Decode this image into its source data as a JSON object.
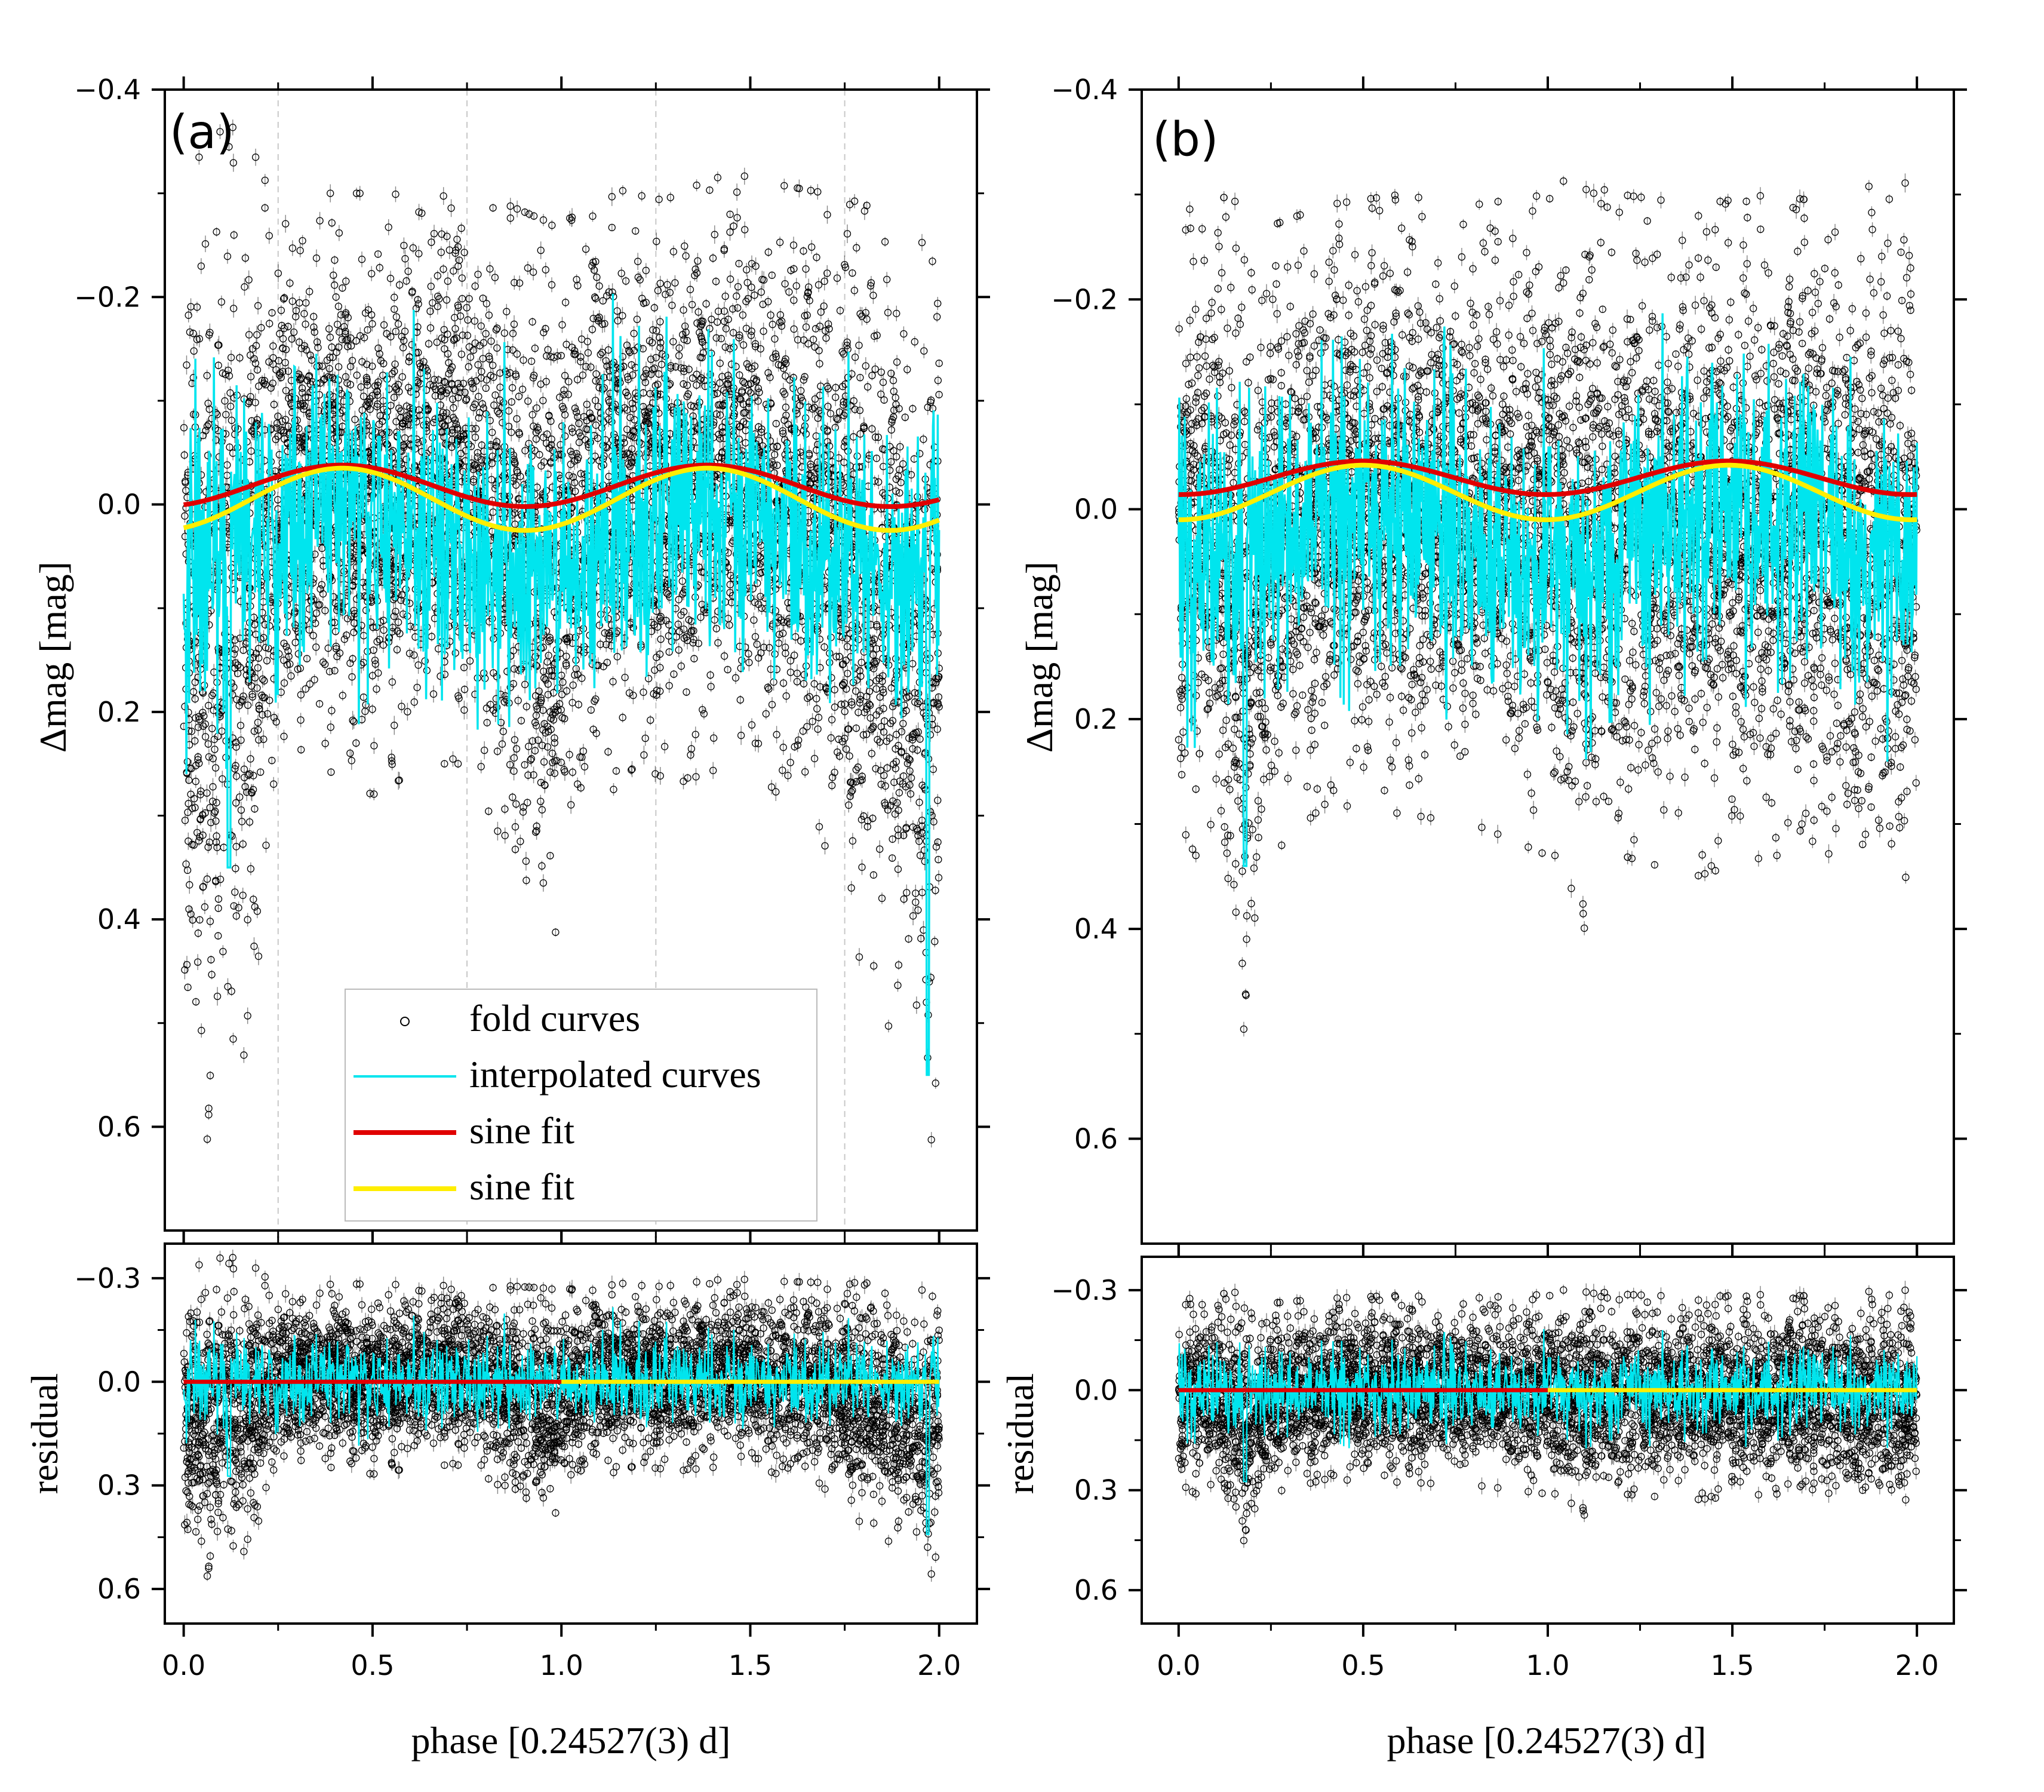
{
  "colors": {
    "fold_points": "#000000",
    "interpolated": "#00e5ee",
    "sine_fit_1": "#e00000",
    "sine_fit_2": "#ffee00",
    "grid": "#c8c8c8"
  },
  "legend": {
    "fold_label": "fold curves",
    "interp_label": "interpolated curves",
    "sine1_label": "sine fit",
    "sine2_label": "sine fit"
  },
  "chart_data": [
    {
      "id": "a",
      "label": "(a)",
      "type": "scatter",
      "x_label": "phase [0.24527(3) d]",
      "x_range": [
        -0.05,
        2.1
      ],
      "x_ticks": [
        0.0,
        0.5,
        1.0,
        1.5,
        2.0
      ],
      "x_tick_labels": [
        "0.0",
        "0.5",
        "1.0",
        "1.5",
        "2.0"
      ],
      "main": {
        "ylabel": "Δmag [mag]",
        "ylim": [
          -0.4,
          0.7
        ],
        "inverted": true,
        "y_ticks": [
          -0.4,
          -0.2,
          0.0,
          0.2,
          0.4,
          0.6
        ],
        "y_tick_labels": [
          "−0.4",
          "−0.2",
          "0.0",
          "0.2",
          "0.4",
          "0.6"
        ],
        "vgrid": [
          0.25,
          0.75,
          1.25,
          1.75
        ],
        "band_envelope_phase": [
          0.0,
          0.03,
          0.12,
          0.2,
          0.25,
          0.35,
          0.5,
          0.65,
          0.75,
          0.85,
          0.98,
          1.05,
          1.2,
          1.3,
          1.45,
          1.55,
          1.7,
          1.8,
          1.9,
          1.97,
          2.0
        ],
        "band_upper_mag": [
          -0.24,
          -0.3,
          -0.34,
          -0.3,
          -0.28,
          -0.27,
          -0.27,
          -0.28,
          -0.27,
          -0.26,
          -0.24,
          -0.25,
          -0.28,
          -0.27,
          -0.29,
          -0.28,
          -0.27,
          -0.26,
          -0.24,
          -0.23,
          -0.22
        ],
        "band_lower_mag": [
          0.4,
          0.6,
          0.55,
          0.45,
          0.25,
          0.22,
          0.25,
          0.22,
          0.22,
          0.3,
          0.42,
          0.28,
          0.22,
          0.24,
          0.22,
          0.24,
          0.3,
          0.42,
          0.5,
          0.62,
          0.5
        ],
        "sine_fit_1": {
          "mean": 0.0,
          "amplitude": 0.02,
          "period": 0.967,
          "peak_phase": 0.42,
          "x_range": [
            0.0,
            2.0
          ]
        },
        "sine_fit_2": {
          "mean": 0.005,
          "amplitude": 0.03,
          "period": 0.967,
          "peak_phase": 0.42,
          "x_range": [
            0.0,
            2.0
          ]
        },
        "interpolated_dips": [
          {
            "phase": 0.12,
            "mag": 0.35
          },
          {
            "phase": 1.97,
            "mag": 0.55
          }
        ]
      },
      "residual": {
        "ylabel": "residual",
        "ylim": [
          -0.4,
          0.7
        ],
        "inverted": true,
        "y_ticks": [
          -0.3,
          0.0,
          0.3,
          0.6
        ],
        "y_tick_labels": [
          "−0.3",
          "0.0",
          "0.3",
          "0.6"
        ],
        "red_line_range": [
          0.0,
          1.0
        ],
        "yellow_line_range": [
          1.0,
          2.0
        ]
      }
    },
    {
      "id": "b",
      "label": "(b)",
      "type": "scatter",
      "x_label": "phase [0.24527(3) d]",
      "x_range": [
        -0.1,
        2.1
      ],
      "x_ticks": [
        0.0,
        0.5,
        1.0,
        1.5,
        2.0
      ],
      "x_tick_labels": [
        "0.0",
        "0.5",
        "1.0",
        "1.5",
        "2.0"
      ],
      "main": {
        "ylabel": "Δmag [mag]",
        "ylim": [
          -0.4,
          0.7
        ],
        "inverted": true,
        "y_ticks": [
          -0.4,
          -0.2,
          0.0,
          0.2,
          0.4,
          0.6
        ],
        "y_tick_labels": [
          "−0.4",
          "−0.2",
          "0.0",
          "0.2",
          "0.4",
          "0.6"
        ],
        "vgrid": [],
        "band_envelope_phase": [
          0.0,
          0.1,
          0.18,
          0.25,
          0.4,
          0.6,
          0.8,
          1.0,
          1.1,
          1.2,
          1.4,
          1.6,
          1.8,
          1.95,
          2.0
        ],
        "band_upper_mag": [
          -0.25,
          -0.27,
          -0.26,
          -0.24,
          -0.26,
          -0.27,
          -0.26,
          -0.27,
          -0.3,
          -0.27,
          -0.26,
          -0.27,
          -0.26,
          -0.3,
          -0.26
        ],
        "band_lower_mag": [
          0.3,
          0.3,
          0.55,
          0.3,
          0.25,
          0.26,
          0.27,
          0.3,
          0.37,
          0.3,
          0.32,
          0.3,
          0.3,
          0.36,
          0.32
        ],
        "sine_fit_1": {
          "mean": -0.012,
          "amplitude": 0.016,
          "period": 0.99,
          "peak_phase": 0.5,
          "x_range": [
            0.0,
            2.0
          ]
        },
        "sine_fit_2": {
          "mean": -0.006,
          "amplitude": 0.026,
          "period": 0.99,
          "peak_phase": 0.5,
          "x_range": [
            0.0,
            2.0
          ]
        },
        "interpolated_dips": [
          {
            "phase": 0.18,
            "mag": 0.34
          }
        ]
      },
      "residual": {
        "ylabel": "residual",
        "ylim": [
          -0.4,
          0.7
        ],
        "inverted": true,
        "y_ticks": [
          -0.3,
          0.0,
          0.3,
          0.6
        ],
        "y_tick_labels": [
          "−0.3",
          "0.0",
          "0.3",
          "0.6"
        ],
        "red_line_range": [
          0.0,
          1.0
        ],
        "yellow_line_range": [
          1.0,
          2.0
        ]
      }
    }
  ]
}
